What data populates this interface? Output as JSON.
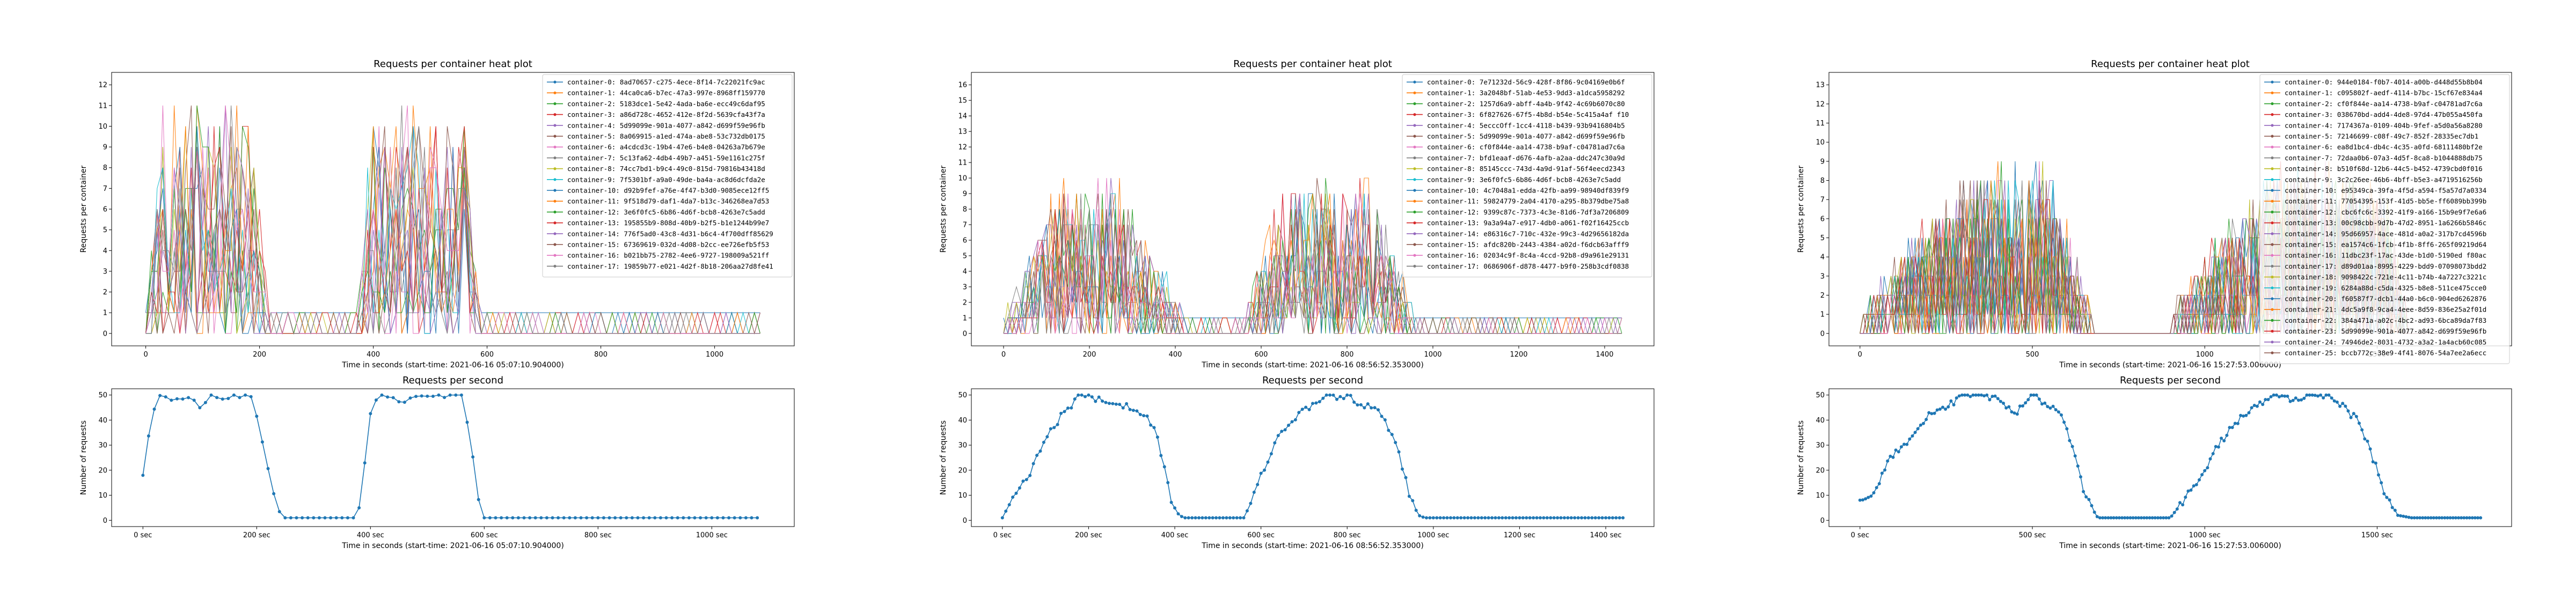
{
  "colors": {
    "palette": [
      "#1f77b4",
      "#ff7f0e",
      "#2ca02c",
      "#d62728",
      "#9467bd",
      "#8c564b",
      "#e377c2",
      "#7f7f7f",
      "#bcbd22",
      "#17becf"
    ],
    "rps_line": "#1f77b4"
  },
  "chart_data": [
    {
      "type": "line",
      "title": "Requests per container heat plot",
      "xlabel": "Time in seconds (start-time: 2021-06-16 05:07:10.904000)",
      "ylabel": "Requests per container",
      "xlim": [
        -60,
        1140
      ],
      "ylim": [
        -0.6,
        12.6
      ],
      "xticks": [
        0,
        200,
        400,
        600,
        800,
        1000
      ],
      "xtick_labels": [
        "0",
        "200",
        "400",
        "600",
        "800",
        "1000"
      ],
      "yticks": [
        0,
        1,
        2,
        3,
        4,
        5,
        6,
        7,
        8,
        9,
        10,
        11,
        12
      ],
      "grid": false,
      "legend_placement": "top-right",
      "profile": [
        [
          0,
          0
        ],
        [
          30,
          0.85
        ],
        [
          180,
          0.85
        ],
        [
          220,
          0
        ],
        [
          370,
          0
        ],
        [
          400,
          0.85
        ],
        [
          560,
          0.85
        ],
        [
          590,
          0
        ],
        [
          1080,
          0
        ]
      ],
      "peak": 12,
      "x_end": 1080,
      "step": 10,
      "idle_value": 1,
      "series_names": [
        "container-0: 8ad70657-c275-4ece-8f14-7c22021fc9ac",
        "container-1: 44ca0ca6-b7ec-47a3-997e-8968ff159770",
        "container-2: 5183dce1-5e42-4ada-ba6e-ecc49c6daf95",
        "container-3: a86d728c-4652-412e-8f2d-5639cfa43f7a",
        "container-4: 5d99099e-901a-4077-a842-d699f59e96fb",
        "container-5: 8a069915-a1ed-474a-abe8-53c732db0175",
        "container-6: a4cdcd3c-19b4-47e6-b4e8-04263a7b679e",
        "container-7: 5c13fa62-4db4-49b7-a451-59e1161c275f",
        "container-8: 74cc7bd1-b9c4-49c0-815d-79816b43418d",
        "container-9: 7f5301bf-a9a0-49de-ba4a-ac8d6dcfda2e",
        "container-10: d92b9fef-a76e-4f47-b3d0-9085ece12ff5",
        "container-11: 9f518d79-daf1-4da7-b13c-346268ea7d53",
        "container-12: 3e6f0fc5-6b86-4d6f-bcb8-4263e7c5add",
        "container-13: 195855b9-808d-40b9-b2f5-b1e1244b99e7",
        "container-14: 776f5ad0-43c8-4d31-b6c4-4f700dff85629",
        "container-15: 67369619-032d-4d08-b2cc-ee726efb5f53",
        "container-16: b021bb75-2782-4ee6-9727-198009a521ff",
        "container-17: 19859b77-e021-4d2f-8b18-206aa27d8fe41"
      ]
    },
    {
      "type": "line",
      "title": "Requests per container heat plot",
      "xlabel": "Time in seconds (start-time: 2021-06-16 08:56:52.353000)",
      "ylabel": "Requests per container",
      "xlim": [
        -75,
        1515
      ],
      "ylim": [
        -0.8,
        16.8
      ],
      "xticks": [
        0,
        200,
        400,
        600,
        800,
        1000,
        1200,
        1400
      ],
      "xtick_labels": [
        "0",
        "200",
        "400",
        "600",
        "800",
        "1000",
        "1200",
        "1400"
      ],
      "yticks": [
        0,
        1,
        2,
        3,
        4,
        5,
        6,
        7,
        8,
        9,
        10,
        11,
        12,
        13,
        14,
        15,
        16
      ],
      "grid": false,
      "legend_placement": "top-right",
      "profile": [
        [
          0,
          0
        ],
        [
          120,
          0.55
        ],
        [
          260,
          0.6
        ],
        [
          400,
          0.1
        ],
        [
          430,
          0
        ],
        [
          560,
          0
        ],
        [
          650,
          0.55
        ],
        [
          850,
          0.6
        ],
        [
          960,
          0
        ],
        [
          1445,
          0
        ]
      ],
      "peak": 16,
      "x_end": 1445,
      "step": 10,
      "idle_value": 1,
      "series_names": [
        "container-0: 7e71232d-56c9-428f-8f86-9c04169e0b6f",
        "container-1: 3a2048bf-51ab-4e53-9dd3-a1dca5958292",
        "container-2: 1257d6a9-abff-4a4b-9f42-4c69b6070c80",
        "container-3: 6f827626-67f5-4b8d-b54e-5c415a4af f10",
        "container-4: 5ecccOff-1cc4-4118-b439-93b9416804b5",
        "container-5: 5d99099e-901a-4077-a842-d699f59e96fb",
        "container-6: cf0f844e-aa14-4738-b9af-c04781ad7c6a",
        "container-7: bfd1eaaf-d676-4afb-a2aa-ddc247c30a9d",
        "container-8: 85145ccc-743d-4a9d-91af-56f4eecd2343",
        "container-9: 3e6f0fc5-6b86-4d6f-bcb8-4263e7c5add",
        "container-10: 4c7048a1-edda-42fb-aa99-98940df839f9",
        "container-11: 59824779-2a04-4170-a295-8b379dbe75a8",
        "container-12: 9399c87c-7373-4c3e-81d6-7df3a7206809",
        "container-13: 9a3a94a7-e917-4db0-a061-f02f16425ccb",
        "container-14: e86316c7-710c-432e-99c3-4d29656182da",
        "container-15: afdc820b-2443-4384-a02d-f6dcb63afff9",
        "container-16: 02034c9f-8c4a-4ccd-92b8-d9a961e29131",
        "container-17: 0686906f-d878-4477-b9f0-258b3cdf0838"
      ]
    },
    {
      "type": "line",
      "title": "Requests per container heat plot",
      "xlabel": "Time in seconds (start-time: 2021-06-16 15:27:53.006000)",
      "ylabel": "Requests per container",
      "xlim": [
        -90,
        1890
      ],
      "ylim": [
        -0.65,
        13.65
      ],
      "xticks": [
        0,
        500,
        1000,
        1500
      ],
      "xtick_labels": [
        "0",
        "500",
        "1000",
        "1500"
      ],
      "yticks": [
        0,
        1,
        2,
        3,
        4,
        5,
        6,
        7,
        8,
        9,
        10,
        11,
        12,
        13
      ],
      "grid": false,
      "legend_placement": "top-right",
      "profile": [
        [
          0,
          0
        ],
        [
          130,
          0.3
        ],
        [
          330,
          0.6
        ],
        [
          560,
          0.6
        ],
        [
          680,
          0
        ],
        [
          900,
          0
        ],
        [
          1050,
          0.35
        ],
        [
          1250,
          0.65
        ],
        [
          1520,
          0.55
        ],
        [
          1590,
          0
        ],
        [
          1800,
          0
        ]
      ],
      "peak": 13,
      "x_end": 1800,
      "step": 10,
      "idle_value": 0,
      "series_names": [
        "container-0: 944e0184-f0b7-4014-a00b-d448d55b8b04",
        "container-1: c095802f-aedf-4114-b7bc-15cf67e834a4",
        "container-2: cf0f844e-aa14-4738-b9af-c04781ad7c6a",
        "container-3: 038670bd-add4-4de8-97d4-47b055a450fa",
        "container-4: 7174367a-0109-404b-9fef-a5d0a56a8280",
        "container-5: 72146699-c08f-49c7-852f-28335ec7db1",
        "container-6: ea8d1bc4-db4c-4c35-a0fd-68111480bf2e",
        "container-7: 72daa0b6-07a3-4d5f-8ca8-b1044888db75",
        "container-8: b510f68d-12b6-44c5-b452-4739cbd0f016",
        "container-9: 3c2c26ee-46b6-4bff-b5e3-a4719516256b",
        "container-10: e95349ca-39fa-4f5d-a594-f5a57d7a0334",
        "container-11: 77054395-153f-41d5-bb5e-ff6089bb399b",
        "container-12: cbc6fc6c-3392-41f9-a166-15b9e9f7e6a6",
        "container-13: 00c98cbb-9d7b-47d2-8951-1a6266b5846c",
        "container-14: 95d66957-4ace-481d-a0a2-317b7cd4596b",
        "container-15: ea1574c6-1fcb-4f1b-8ff6-265f09219d64",
        "container-16: 11dbc23f-17ac-43de-b1d0-5190ed f80ac",
        "container-17: d89d01aa-8995-4229-bdd9-07098073bdd2",
        "container-18: 9098422c-721e-4c11-b74b-4a7227c3221c",
        "container-19: 6284a88d-c5da-4325-b8e8-511ce475cce0",
        "container-20: f60587f7-dcb1-44a0-b6c0-904ed6262876",
        "container-21: 4dc5a9f8-9ca4-4eee-8d59-836e25a2f01d",
        "container-22: 384a471a-a02c-4bc2-ad93-6bca89da7f83",
        "container-23: 5d99099e-901a-4077-a842-d699f59e96fb",
        "container-24: 74946de2-8031-4732-a3a2-1a4acb60c085",
        "container-25: bccb772c-38e9-4f41-8076-54a7ee2a6ecc"
      ]
    },
    {
      "type": "line",
      "title": "Requests per second",
      "xlabel": "Time in seconds (start-time: 2021-06-16 05:07:10.904000)",
      "ylabel": "Number of requests",
      "xlim": [
        -55,
        1145
      ],
      "ylim": [
        -2.5,
        52.5
      ],
      "xticks": [
        0,
        200,
        400,
        600,
        800,
        1000
      ],
      "xtick_labels": [
        "0 sec",
        "200 sec",
        "400 sec",
        "600 sec",
        "800 sec",
        "1000 sec"
      ],
      "yticks": [
        0,
        10,
        20,
        30,
        40,
        50
      ],
      "grid": false,
      "profile": [
        [
          0,
          18
        ],
        [
          10,
          35
        ],
        [
          25,
          49
        ],
        [
          40,
          50
        ],
        [
          60,
          48
        ],
        [
          80,
          50
        ],
        [
          100,
          44
        ],
        [
          120,
          50
        ],
        [
          140,
          47
        ],
        [
          160,
          50
        ],
        [
          190,
          50
        ],
        [
          205,
          38
        ],
        [
          220,
          20
        ],
        [
          235,
          5
        ],
        [
          248,
          1
        ],
        [
          370,
          1
        ],
        [
          380,
          5
        ],
        [
          392,
          28
        ],
        [
          402,
          46
        ],
        [
          415,
          50
        ],
        [
          440,
          50
        ],
        [
          460,
          47
        ],
        [
          480,
          50
        ],
        [
          510,
          49
        ],
        [
          530,
          50
        ],
        [
          560,
          50
        ],
        [
          575,
          35
        ],
        [
          588,
          10
        ],
        [
          600,
          1
        ],
        [
          1085,
          1
        ]
      ],
      "step": 10,
      "marker_every": 7
    },
    {
      "type": "line",
      "title": "Requests per second",
      "xlabel": "Time in seconds (start-time: 2021-06-16 08:56:52.353000)",
      "ylabel": "Number of requests",
      "xlim": [
        -72,
        1512
      ],
      "ylim": [
        -2.5,
        52.5
      ],
      "xticks": [
        0,
        200,
        400,
        600,
        800,
        1000,
        1200,
        1400
      ],
      "xtick_labels": [
        "0 sec",
        "200 sec",
        "400 sec",
        "600 sec",
        "800 sec",
        "1000 sec",
        "1200 sec",
        "1400 sec"
      ],
      "yticks": [
        0,
        10,
        20,
        30,
        40,
        50
      ],
      "grid": false,
      "profile": [
        [
          0,
          1
        ],
        [
          15,
          6
        ],
        [
          40,
          12
        ],
        [
          60,
          18
        ],
        [
          90,
          28
        ],
        [
          120,
          38
        ],
        [
          150,
          44
        ],
        [
          180,
          50
        ],
        [
          220,
          48
        ],
        [
          260,
          47
        ],
        [
          300,
          45
        ],
        [
          330,
          43
        ],
        [
          355,
          36
        ],
        [
          375,
          22
        ],
        [
          392,
          8
        ],
        [
          405,
          3
        ],
        [
          420,
          1
        ],
        [
          560,
          1
        ],
        [
          580,
          8
        ],
        [
          610,
          22
        ],
        [
          640,
          33
        ],
        [
          680,
          41
        ],
        [
          720,
          46
        ],
        [
          760,
          50
        ],
        [
          800,
          49
        ],
        [
          840,
          46
        ],
        [
          870,
          44
        ],
        [
          900,
          36
        ],
        [
          925,
          24
        ],
        [
          945,
          10
        ],
        [
          965,
          2
        ],
        [
          980,
          1
        ],
        [
          1445,
          1
        ]
      ],
      "step": 8,
      "marker_every": 5
    },
    {
      "type": "line",
      "title": "Requests per second",
      "xlabel": "Time in seconds (start-time: 2021-06-16 15:27:53.006000)",
      "ylabel": "Number of requests",
      "xlim": [
        -90,
        1890
      ],
      "ylim": [
        -2.5,
        52.5
      ],
      "xticks": [
        0,
        500,
        1000,
        1500
      ],
      "xtick_labels": [
        "0 sec",
        "500 sec",
        "1000 sec",
        "1500 sec"
      ],
      "yticks": [
        0,
        10,
        20,
        30,
        40,
        50
      ],
      "grid": false,
      "profile": [
        [
          0,
          8
        ],
        [
          20,
          7
        ],
        [
          40,
          11
        ],
        [
          70,
          20
        ],
        [
          100,
          27
        ],
        [
          140,
          32
        ],
        [
          170,
          38
        ],
        [
          220,
          44
        ],
        [
          260,
          46
        ],
        [
          300,
          50
        ],
        [
          350,
          50
        ],
        [
          400,
          48
        ],
        [
          450,
          42
        ],
        [
          500,
          50
        ],
        [
          540,
          46
        ],
        [
          580,
          43
        ],
        [
          620,
          28
        ],
        [
          650,
          10
        ],
        [
          690,
          1
        ],
        [
          900,
          1
        ],
        [
          940,
          8
        ],
        [
          990,
          18
        ],
        [
          1040,
          30
        ],
        [
          1080,
          38
        ],
        [
          1120,
          42
        ],
        [
          1160,
          47
        ],
        [
          1200,
          50
        ],
        [
          1250,
          48
        ],
        [
          1300,
          50
        ],
        [
          1350,
          50
        ],
        [
          1400,
          46
        ],
        [
          1440,
          40
        ],
        [
          1480,
          28
        ],
        [
          1520,
          12
        ],
        [
          1560,
          2
        ],
        [
          1600,
          1
        ],
        [
          1800,
          1
        ]
      ],
      "step": 8,
      "marker_every": 5
    }
  ]
}
